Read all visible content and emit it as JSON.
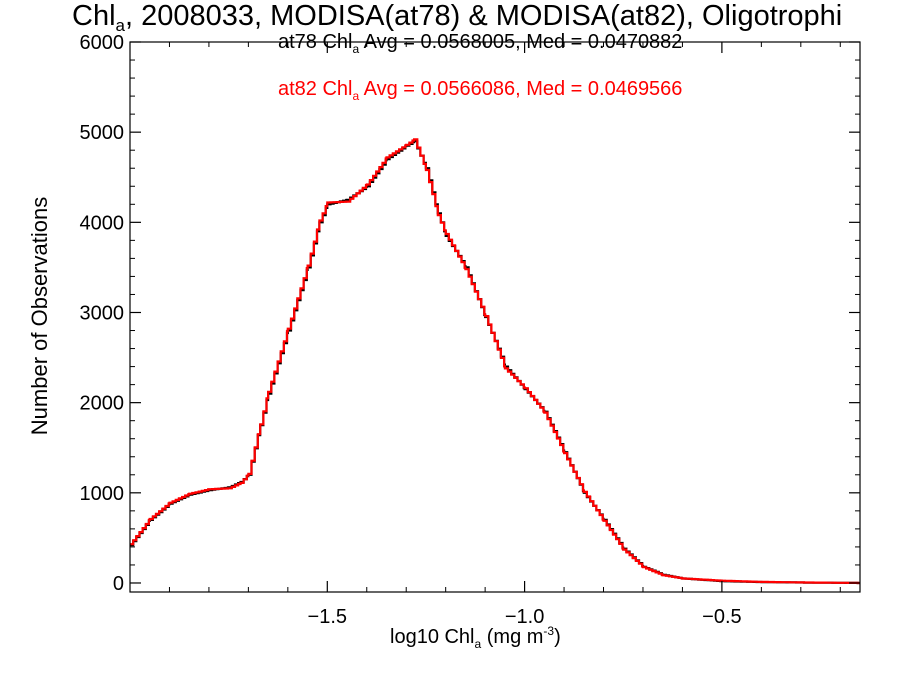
{
  "title": {
    "prefix": "Chl",
    "sub": "a",
    "rest": ", 2008033, MODISA(at78) & MODISA(at82), Oligotrophi"
  },
  "stats": {
    "line1": {
      "prefix": "at78 Chl",
      "sub": "a",
      "rest": " Avg = 0.0568005, Med = 0.0470882",
      "color": "#000000"
    },
    "line2": {
      "prefix": "at82 Chl",
      "sub": "a",
      "rest": " Avg = 0.0566086, Med = 0.0469566",
      "color": "#ff0000"
    }
  },
  "axes": {
    "ylabel": "Number of Observations",
    "xlabel": {
      "prefix": "log10 Chl",
      "sub": "a",
      "mid": " (mg m",
      "sup": "-3",
      "end": ")"
    }
  },
  "chart_data": {
    "type": "line",
    "style": "step-histogram",
    "xlim": [
      -2.0,
      -0.15
    ],
    "ylim": [
      -100,
      6000
    ],
    "xticks": [
      -1.5,
      -1.0,
      -0.5
    ],
    "xtick_labels": [
      "−1.5",
      "−1.0",
      "−0.5"
    ],
    "yticks": [
      0,
      1000,
      2000,
      3000,
      4000,
      5000,
      6000
    ],
    "ytick_labels": [
      "0",
      "1000",
      "2000",
      "3000",
      "4000",
      "5000",
      "6000"
    ],
    "grid": false,
    "colors": {
      "at78": "#000000",
      "at82": "#ff0000"
    },
    "series": [
      {
        "name": "at78",
        "color": "#000000",
        "points": [
          [
            -2.0,
            420
          ],
          [
            -1.95,
            700
          ],
          [
            -1.9,
            880
          ],
          [
            -1.85,
            980
          ],
          [
            -1.8,
            1030
          ],
          [
            -1.75,
            1060
          ],
          [
            -1.72,
            1120
          ],
          [
            -1.7,
            1200
          ],
          [
            -1.67,
            1750
          ],
          [
            -1.65,
            2100
          ],
          [
            -1.6,
            2800
          ],
          [
            -1.55,
            3500
          ],
          [
            -1.52,
            4000
          ],
          [
            -1.5,
            4200
          ],
          [
            -1.45,
            4250
          ],
          [
            -1.4,
            4400
          ],
          [
            -1.35,
            4700
          ],
          [
            -1.3,
            4850
          ],
          [
            -1.28,
            4900
          ],
          [
            -1.25,
            4600
          ],
          [
            -1.22,
            4100
          ],
          [
            -1.2,
            3850
          ],
          [
            -1.15,
            3500
          ],
          [
            -1.1,
            2950
          ],
          [
            -1.05,
            2400
          ],
          [
            -1.0,
            2150
          ],
          [
            -0.95,
            1900
          ],
          [
            -0.9,
            1450
          ],
          [
            -0.85,
            1000
          ],
          [
            -0.8,
            700
          ],
          [
            -0.75,
            380
          ],
          [
            -0.7,
            180
          ],
          [
            -0.65,
            90
          ],
          [
            -0.6,
            50
          ],
          [
            -0.5,
            20
          ],
          [
            -0.4,
            10
          ],
          [
            -0.3,
            5
          ],
          [
            -0.15,
            0
          ]
        ]
      },
      {
        "name": "at82",
        "color": "#ff0000",
        "points": [
          [
            -2.0,
            430
          ],
          [
            -1.95,
            710
          ],
          [
            -1.9,
            890
          ],
          [
            -1.85,
            990
          ],
          [
            -1.8,
            1040
          ],
          [
            -1.75,
            1050
          ],
          [
            -1.72,
            1110
          ],
          [
            -1.7,
            1210
          ],
          [
            -1.67,
            1760
          ],
          [
            -1.65,
            2120
          ],
          [
            -1.6,
            2820
          ],
          [
            -1.55,
            3520
          ],
          [
            -1.52,
            4020
          ],
          [
            -1.5,
            4220
          ],
          [
            -1.45,
            4230
          ],
          [
            -1.4,
            4420
          ],
          [
            -1.35,
            4720
          ],
          [
            -1.3,
            4860
          ],
          [
            -1.28,
            4920
          ],
          [
            -1.25,
            4580
          ],
          [
            -1.22,
            4080
          ],
          [
            -1.2,
            3870
          ],
          [
            -1.15,
            3480
          ],
          [
            -1.1,
            2960
          ],
          [
            -1.05,
            2380
          ],
          [
            -1.0,
            2160
          ],
          [
            -0.95,
            1890
          ],
          [
            -0.9,
            1440
          ],
          [
            -0.85,
            1010
          ],
          [
            -0.8,
            690
          ],
          [
            -0.75,
            370
          ],
          [
            -0.7,
            175
          ],
          [
            -0.65,
            85
          ],
          [
            -0.6,
            50
          ],
          [
            -0.5,
            25
          ],
          [
            -0.4,
            12
          ],
          [
            -0.3,
            6
          ],
          [
            -0.15,
            0
          ]
        ]
      }
    ]
  }
}
